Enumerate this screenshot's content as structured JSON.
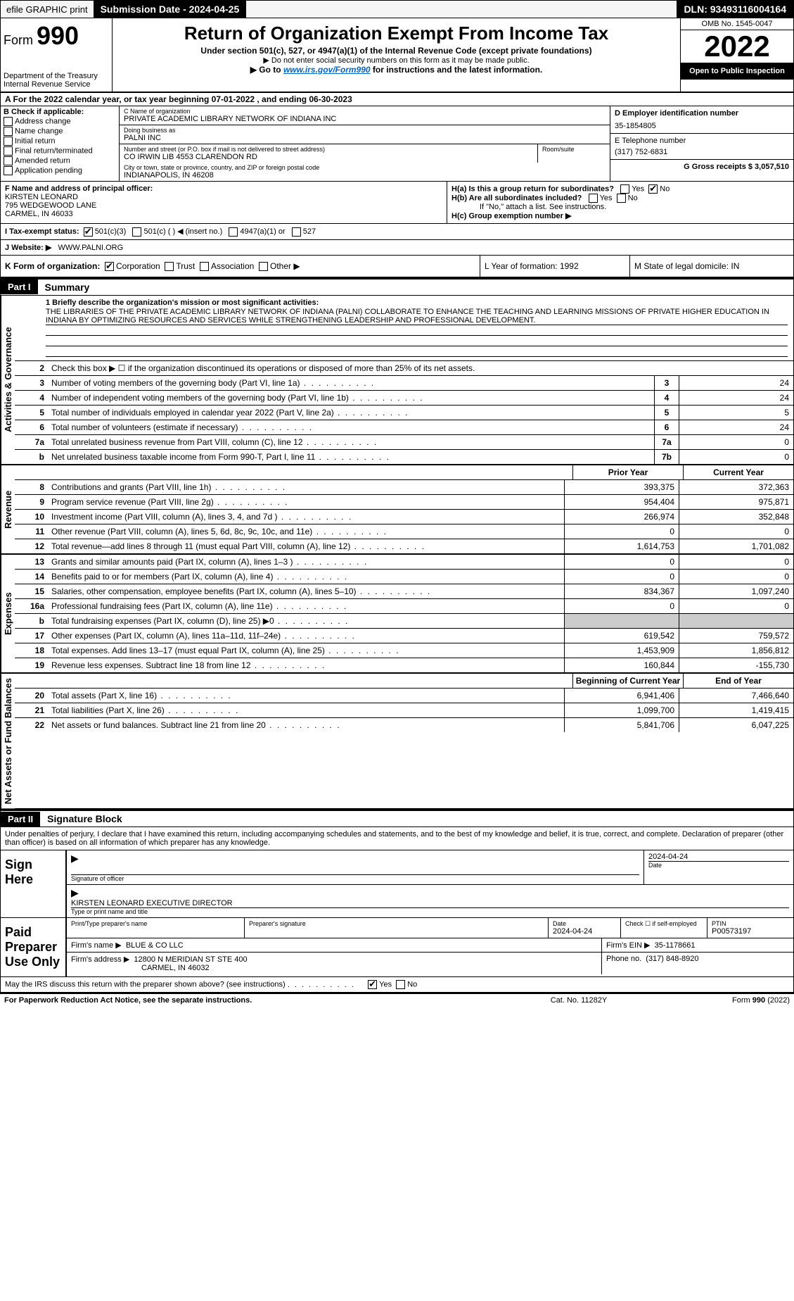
{
  "topbar": {
    "efile_label": "efile GRAPHIC print",
    "submission_label": "Submission Date - 2024-04-25",
    "dln": "DLN: 93493116004164"
  },
  "header": {
    "form_label": "Form",
    "form_number": "990",
    "dept": "Department of the Treasury",
    "irs": "Internal Revenue Service",
    "title": "Return of Organization Exempt From Income Tax",
    "subtitle1": "Under section 501(c), 527, or 4947(a)(1) of the Internal Revenue Code (except private foundations)",
    "subtitle2": "▶ Do not enter social security numbers on this form as it may be made public.",
    "subtitle3_pre": "▶ Go to ",
    "subtitle3_link": "www.irs.gov/Form990",
    "subtitle3_post": " for instructions and the latest information.",
    "omb": "OMB No. 1545-0047",
    "year": "2022",
    "open": "Open to Public Inspection"
  },
  "rowA": "A For the 2022 calendar year, or tax year beginning 07-01-2022    , and ending 06-30-2023",
  "colB": {
    "label": "B Check if applicable:",
    "items": [
      "Address change",
      "Name change",
      "Initial return",
      "Final return/terminated",
      "Amended return",
      "Application pending"
    ]
  },
  "colC": {
    "name_lbl": "C Name of organization",
    "name": "PRIVATE ACADEMIC LIBRARY NETWORK OF INDIANA INC",
    "dba_lbl": "Doing business as",
    "dba": "PALNI INC",
    "addr_lbl": "Number and street (or P.O. box if mail is not delivered to street address)",
    "room_lbl": "Room/suite",
    "addr": "CO IRWIN LIB 4553 CLARENDON RD",
    "city_lbl": "City or town, state or province, country, and ZIP or foreign postal code",
    "city": "INDIANAPOLIS, IN  46208"
  },
  "colD": {
    "ein_lbl": "D Employer identification number",
    "ein": "35-1854805",
    "phone_lbl": "E Telephone number",
    "phone": "(317) 752-6831",
    "gross_lbl": "G Gross receipts $ 3,057,510"
  },
  "rowF": {
    "f_lbl": "F Name and address of principal officer:",
    "f_name": "KIRSTEN LEONARD",
    "f_addr1": "795 WEDGEWOOD LANE",
    "f_addr2": "CARMEL, IN  46033",
    "ha_lbl": "H(a)  Is this a group return for subordinates?",
    "ha_yes": "Yes",
    "ha_no": "No",
    "hb_lbl": "H(b)  Are all subordinates included?",
    "hb_yes": "Yes",
    "hb_no": "No",
    "hb_note": "If \"No,\" attach a list. See instructions.",
    "hc_lbl": "H(c)  Group exemption number ▶"
  },
  "rowI": {
    "i_lbl": "I    Tax-exempt status:",
    "i_501c3": "501(c)(3)",
    "i_501c": "501(c) (  ) ◀ (insert no.)",
    "i_4947": "4947(a)(1) or",
    "i_527": "527",
    "j_lbl": "J    Website: ▶",
    "j_val": "WWW.PALNI.ORG"
  },
  "rowK": {
    "k_lbl": "K Form of organization:",
    "k_corp": "Corporation",
    "k_trust": "Trust",
    "k_assoc": "Association",
    "k_other": "Other ▶",
    "l_lbl": "L Year of formation: 1992",
    "m_lbl": "M State of legal domicile: IN"
  },
  "part1": {
    "tag": "Part I",
    "title": "Summary",
    "vtab_gov": "Activities & Governance",
    "vtab_rev": "Revenue",
    "vtab_exp": "Expenses",
    "vtab_net": "Net Assets or Fund Balances",
    "line1_lbl": "1  Briefly describe the organization's mission or most significant activities:",
    "mission": "THE LIBRARIES OF THE PRIVATE ACADEMIC LIBRARY NETWORK OF INDIANA (PALNI) COLLABORATE TO ENHANCE THE TEACHING AND LEARNING MISSIONS OF PRIVATE HIGHER EDUCATION IN INDIANA BY OPTIMIZING RESOURCES AND SERVICES WHILE STRENGTHENING LEADERSHIP AND PROFESSIONAL DEVELOPMENT.",
    "line2": "Check this box ▶ ☐  if the organization discontinued its operations or disposed of more than 25% of its net assets.",
    "prior": "Prior Year",
    "current": "Current Year",
    "boy": "Beginning of Current Year",
    "eoy": "End of Year",
    "lines_gov": [
      {
        "n": "3",
        "d": "Number of voting members of the governing body (Part VI, line 1a)",
        "box": "3",
        "v": "24"
      },
      {
        "n": "4",
        "d": "Number of independent voting members of the governing body (Part VI, line 1b)",
        "box": "4",
        "v": "24"
      },
      {
        "n": "5",
        "d": "Total number of individuals employed in calendar year 2022 (Part V, line 2a)",
        "box": "5",
        "v": "5"
      },
      {
        "n": "6",
        "d": "Total number of volunteers (estimate if necessary)",
        "box": "6",
        "v": "24"
      },
      {
        "n": "7a",
        "d": "Total unrelated business revenue from Part VIII, column (C), line 12",
        "box": "7a",
        "v": "0"
      },
      {
        "n": "b",
        "d": "Net unrelated business taxable income from Form 990-T, Part I, line 11",
        "box": "7b",
        "v": "0"
      }
    ],
    "lines_rev": [
      {
        "n": "8",
        "d": "Contributions and grants (Part VIII, line 1h)",
        "p": "393,375",
        "c": "372,363"
      },
      {
        "n": "9",
        "d": "Program service revenue (Part VIII, line 2g)",
        "p": "954,404",
        "c": "975,871"
      },
      {
        "n": "10",
        "d": "Investment income (Part VIII, column (A), lines 3, 4, and 7d )",
        "p": "266,974",
        "c": "352,848"
      },
      {
        "n": "11",
        "d": "Other revenue (Part VIII, column (A), lines 5, 6d, 8c, 9c, 10c, and 11e)",
        "p": "0",
        "c": "0"
      },
      {
        "n": "12",
        "d": "Total revenue—add lines 8 through 11 (must equal Part VIII, column (A), line 12)",
        "p": "1,614,753",
        "c": "1,701,082"
      }
    ],
    "lines_exp": [
      {
        "n": "13",
        "d": "Grants and similar amounts paid (Part IX, column (A), lines 1–3 )",
        "p": "0",
        "c": "0"
      },
      {
        "n": "14",
        "d": "Benefits paid to or for members (Part IX, column (A), line 4)",
        "p": "0",
        "c": "0"
      },
      {
        "n": "15",
        "d": "Salaries, other compensation, employee benefits (Part IX, column (A), lines 5–10)",
        "p": "834,367",
        "c": "1,097,240"
      },
      {
        "n": "16a",
        "d": "Professional fundraising fees (Part IX, column (A), line 11e)",
        "p": "0",
        "c": "0"
      },
      {
        "n": "b",
        "d": "Total fundraising expenses (Part IX, column (D), line 25) ▶0",
        "p": "",
        "c": ""
      },
      {
        "n": "17",
        "d": "Other expenses (Part IX, column (A), lines 11a–11d, 11f–24e)",
        "p": "619,542",
        "c": "759,572"
      },
      {
        "n": "18",
        "d": "Total expenses. Add lines 13–17 (must equal Part IX, column (A), line 25)",
        "p": "1,453,909",
        "c": "1,856,812"
      },
      {
        "n": "19",
        "d": "Revenue less expenses. Subtract line 18 from line 12",
        "p": "160,844",
        "c": "-155,730"
      }
    ],
    "lines_net": [
      {
        "n": "20",
        "d": "Total assets (Part X, line 16)",
        "p": "6,941,406",
        "c": "7,466,640"
      },
      {
        "n": "21",
        "d": "Total liabilities (Part X, line 26)",
        "p": "1,099,700",
        "c": "1,419,415"
      },
      {
        "n": "22",
        "d": "Net assets or fund balances. Subtract line 21 from line 20",
        "p": "5,841,706",
        "c": "6,047,225"
      }
    ]
  },
  "part2": {
    "tag": "Part II",
    "title": "Signature Block",
    "decl": "Under penalties of perjury, I declare that I have examined this return, including accompanying schedules and statements, and to the best of my knowledge and belief, it is true, correct, and complete. Declaration of preparer (other than officer) is based on all information of which preparer has any knowledge.",
    "sign_here": "Sign Here",
    "sig_officer": "Signature of officer",
    "sig_date": "Date",
    "sig_date_val": "2024-04-24",
    "officer_name": "KIRSTEN LEONARD  EXECUTIVE DIRECTOR",
    "officer_name_lbl": "Type or print name and title",
    "paid_prep": "Paid Preparer Use Only",
    "prep_name_lbl": "Print/Type preparer's name",
    "prep_sig_lbl": "Preparer's signature",
    "prep_date_lbl": "Date",
    "prep_date": "2024-04-24",
    "prep_self": "Check ☐ if self-employed",
    "ptin_lbl": "PTIN",
    "ptin": "P00573197",
    "firm_name_lbl": "Firm's name    ▶",
    "firm_name": "BLUE & CO LLC",
    "firm_ein_lbl": "Firm's EIN ▶",
    "firm_ein": "35-1178661",
    "firm_addr_lbl": "Firm's address ▶",
    "firm_addr1": "12800 N MERIDIAN ST STE 400",
    "firm_addr2": "CARMEL, IN  46032",
    "firm_phone_lbl": "Phone no.",
    "firm_phone": "(317) 848-8920",
    "discuss": "May the IRS discuss this return with the preparer shown above? (see instructions)",
    "discuss_yes": "Yes",
    "discuss_no": "No"
  },
  "footer": {
    "left": "For Paperwork Reduction Act Notice, see the separate instructions.",
    "mid": "Cat. No. 11282Y",
    "right": "Form 990 (2022)"
  }
}
